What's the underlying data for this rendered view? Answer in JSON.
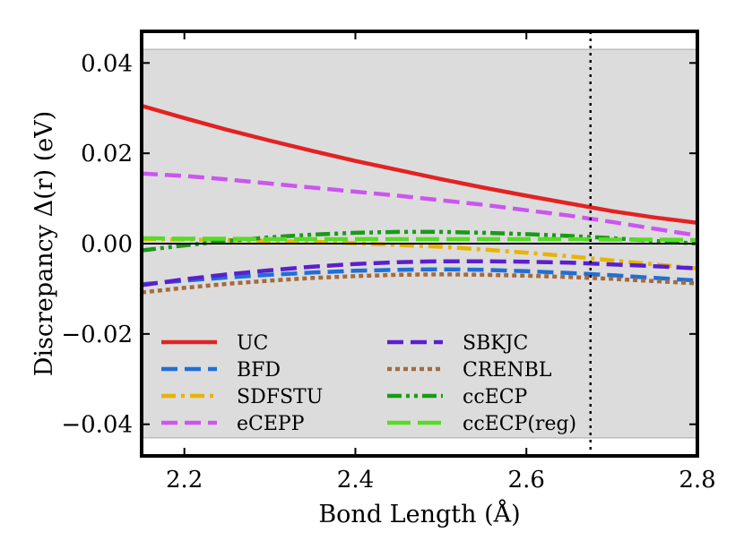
{
  "chart_data": {
    "type": "line",
    "title": "",
    "xlabel": "Bond Length (Å)",
    "ylabel": "Discrepancy Δ(r) (eV)",
    "xlim": [
      2.15,
      2.8
    ],
    "ylim": [
      -0.047,
      0.047
    ],
    "xticks": [
      2.2,
      2.4,
      2.6,
      2.8
    ],
    "xtick_labels": [
      "2.2",
      "2.4",
      "2.6",
      "2.8"
    ],
    "yticks": [
      0.04,
      0.02,
      0.0,
      -0.02,
      -0.04
    ],
    "ytick_labels": [
      "0.04",
      "0.02",
      "0.00",
      "−0.02",
      "−0.04"
    ],
    "shaded_band": [
      -0.043,
      0.043
    ],
    "reference_line_y": 0.0,
    "vertical_line_x": 2.675,
    "legend_position": "lower-left",
    "x": [
      2.15,
      2.2,
      2.25,
      2.3,
      2.35,
      2.4,
      2.45,
      2.5,
      2.55,
      2.6,
      2.65,
      2.7,
      2.75,
      2.8
    ],
    "series": [
      {
        "name": "UC",
        "color": "#e32222",
        "dash": "solid",
        "values": [
          0.0305,
          0.0278,
          0.0252,
          0.0228,
          0.0205,
          0.0183,
          0.0163,
          0.0143,
          0.0124,
          0.0106,
          0.0089,
          0.0072,
          0.0058,
          0.0046
        ]
      },
      {
        "name": "BFD",
        "color": "#1f6fd6",
        "dash": "dashed",
        "values": [
          -0.009,
          -0.0082,
          -0.0075,
          -0.0069,
          -0.0064,
          -0.006,
          -0.0058,
          -0.0057,
          -0.0058,
          -0.0061,
          -0.0065,
          -0.007,
          -0.0076,
          -0.0082
        ]
      },
      {
        "name": "SDFSTU",
        "color": "#e8b400",
        "dash": "dashdot",
        "values": [
          0.001,
          0.0009,
          0.0008,
          0.0006,
          0.0004,
          0.0001,
          -0.0003,
          -0.0007,
          -0.0013,
          -0.002,
          -0.0028,
          -0.0037,
          -0.0046,
          -0.0055
        ]
      },
      {
        "name": "eCEPP",
        "color": "#cc55f0",
        "dash": "dashed",
        "values": [
          0.0155,
          0.015,
          0.0142,
          0.0133,
          0.0124,
          0.0115,
          0.0106,
          0.0096,
          0.0086,
          0.0074,
          0.0062,
          0.0048,
          0.0033,
          0.0018
        ]
      },
      {
        "name": "SBKJC",
        "color": "#5a1fcf",
        "dash": "dashed",
        "values": [
          -0.0092,
          -0.0079,
          -0.0068,
          -0.0059,
          -0.0051,
          -0.0045,
          -0.0041,
          -0.0039,
          -0.0039,
          -0.004,
          -0.0042,
          -0.0046,
          -0.005,
          -0.0055
        ]
      },
      {
        "name": "CRENBL",
        "color": "#a66a3c",
        "dash": "dotted",
        "values": [
          -0.0108,
          -0.0098,
          -0.0089,
          -0.0082,
          -0.0076,
          -0.0072,
          -0.0069,
          -0.0068,
          -0.0069,
          -0.0071,
          -0.0074,
          -0.0078,
          -0.0083,
          -0.0088
        ]
      },
      {
        "name": "ccECP",
        "color": "#1a9a1a",
        "dash": "dashdotdot",
        "values": [
          -0.0015,
          -0.0004,
          0.0006,
          0.0014,
          0.002,
          0.0024,
          0.0026,
          0.0026,
          0.0024,
          0.0021,
          0.0017,
          0.0012,
          0.0006,
          0.0
        ]
      },
      {
        "name": "ccECP(reg)",
        "color": "#55dd22",
        "dash": "longdash",
        "values": [
          0.0012,
          0.0011,
          0.0011,
          0.001,
          0.001,
          0.001,
          0.001,
          0.001,
          0.001,
          0.001,
          0.001,
          0.0009,
          0.0009,
          0.0008
        ]
      }
    ]
  }
}
